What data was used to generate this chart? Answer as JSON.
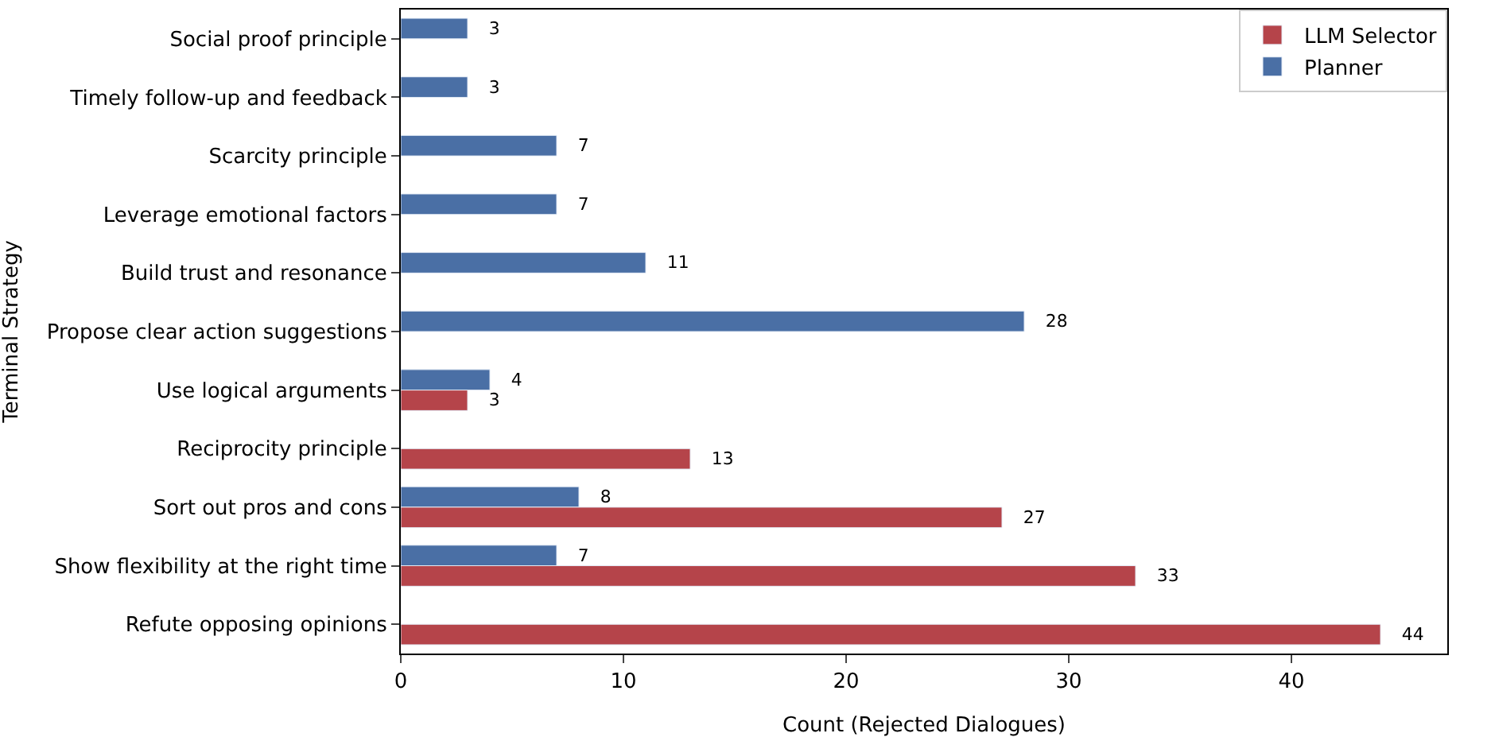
{
  "chart_data": {
    "type": "bar",
    "orientation": "horizontal",
    "xlabel": "Count (Rejected Dialogues)",
    "ylabel": "Terminal Strategy",
    "categories": [
      "Social proof principle",
      "Timely follow-up and feedback",
      "Scarcity principle",
      "Leverage emotional factors",
      "Build trust and resonance",
      "Propose clear action suggestions",
      "Use logical arguments",
      "Reciprocity principle",
      "Sort out pros and cons",
      "Show flexibility at the right time",
      "Refute opposing opinions"
    ],
    "series": [
      {
        "name": "LLM Selector",
        "color": "#b5444a",
        "values": [
          null,
          null,
          null,
          null,
          null,
          null,
          3,
          13,
          27,
          33,
          44
        ]
      },
      {
        "name": "Planner",
        "color": "#4a6fa5",
        "values": [
          3,
          3,
          7,
          7,
          11,
          28,
          4,
          null,
          8,
          7,
          null
        ]
      }
    ],
    "xlim": [
      0,
      47
    ],
    "xticks": [
      0,
      10,
      20,
      30,
      40
    ],
    "data_labels": true,
    "legend": "top right"
  }
}
